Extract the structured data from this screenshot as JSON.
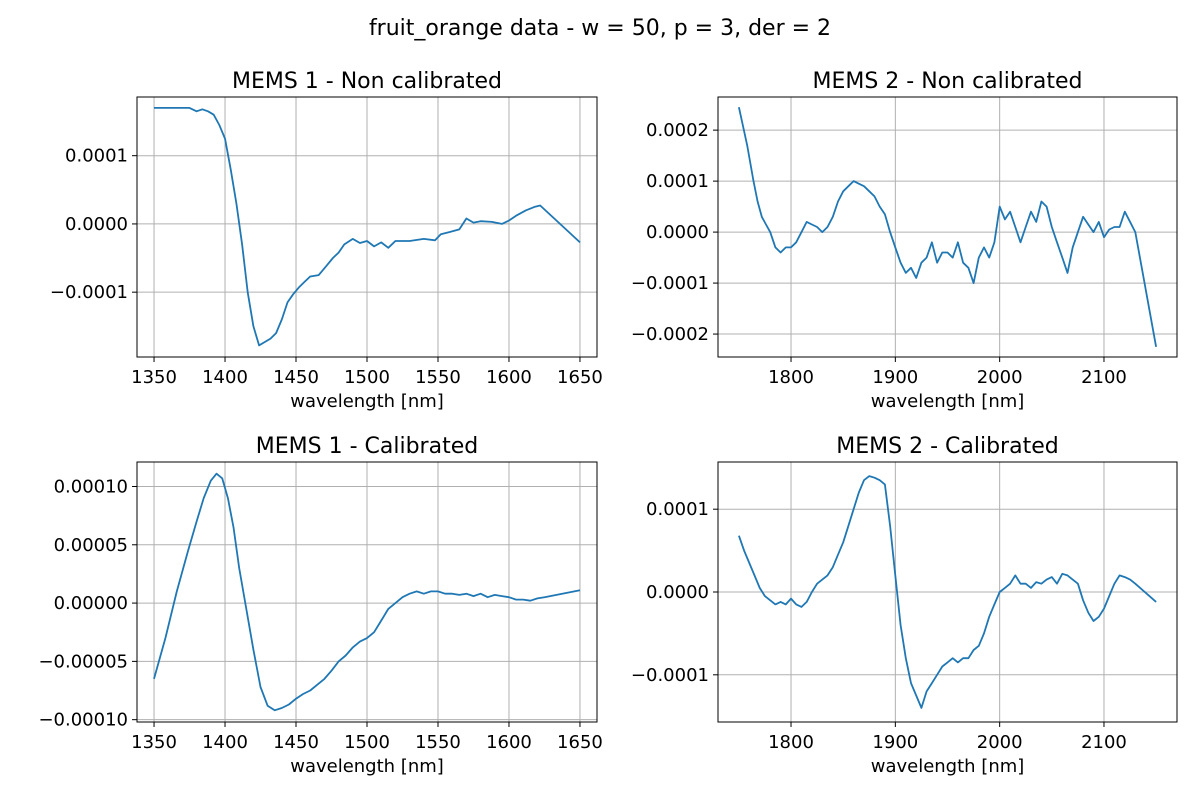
{
  "suptitle": "fruit_orange data - w = 50, p = 3, der = 2",
  "colors": {
    "series": "#1f77b4",
    "grid": "#b0b0b0"
  },
  "chart_data": [
    {
      "type": "line",
      "title": "MEMS 1 - Non calibrated",
      "xlabel": "wavelength [nm]",
      "ylabel": "",
      "grid": true,
      "xlim": [
        1338,
        1662
      ],
      "ylim": [
        -0.000195,
        0.000186
      ],
      "xticks": [
        1350,
        1400,
        1450,
        1500,
        1550,
        1600,
        1650
      ],
      "xtick_labels": [
        "1350",
        "1400",
        "1450",
        "1500",
        "1550",
        "1600",
        "1650"
      ],
      "yticks": [
        -0.0001,
        0.0,
        0.0001
      ],
      "ytick_labels": [
        "−0.0001",
        "0.0000",
        "0.0001"
      ],
      "series": [
        {
          "x": [
            1350,
            1362,
            1375,
            1380,
            1384,
            1388,
            1392,
            1396,
            1400,
            1404,
            1408,
            1412,
            1416,
            1420,
            1424,
            1428,
            1432,
            1436,
            1440,
            1444,
            1448,
            1452,
            1456,
            1460,
            1466,
            1472,
            1476,
            1480,
            1484,
            1490,
            1495,
            1500,
            1505,
            1510,
            1515,
            1520,
            1525,
            1530,
            1540,
            1548,
            1552,
            1558,
            1565,
            1570,
            1575,
            1580,
            1588,
            1595,
            1600,
            1605,
            1612,
            1618,
            1622,
            1650
          ],
          "y": [
            0.00017,
            0.00017,
            0.00017,
            0.000165,
            0.000168,
            0.000165,
            0.00016,
            0.000145,
            0.000125,
            8e-05,
            3e-05,
            -3e-05,
            -0.0001,
            -0.00015,
            -0.000178,
            -0.000173,
            -0.000168,
            -0.00016,
            -0.00014,
            -0.000115,
            -0.000103,
            -9.3e-05,
            -8.5e-05,
            -7.7e-05,
            -7.5e-05,
            -6e-05,
            -5e-05,
            -4.2e-05,
            -3e-05,
            -2.2e-05,
            -2.8e-05,
            -2.5e-05,
            -3.3e-05,
            -2.7e-05,
            -3.5e-05,
            -2.5e-05,
            -2.5e-05,
            -2.5e-05,
            -2.2e-05,
            -2.4e-05,
            -1.5e-05,
            -1.2e-05,
            -8e-06,
            8e-06,
            2e-06,
            4e-06,
            3e-06,
            0.0,
            5e-06,
            1.2e-05,
            2e-05,
            2.5e-05,
            2.7e-05,
            -2.7e-05
          ]
        }
      ]
    },
    {
      "type": "line",
      "title": "MEMS 2 - Non calibrated",
      "xlabel": "wavelength [nm]",
      "ylabel": "",
      "grid": true,
      "xlim": [
        1730,
        2170
      ],
      "ylim": [
        -0.000245,
        0.000265
      ],
      "xticks": [
        1800,
        1900,
        2000,
        2100
      ],
      "xtick_labels": [
        "1800",
        "1900",
        "2000",
        "2100"
      ],
      "yticks": [
        -0.0002,
        -0.0001,
        0.0,
        0.0001,
        0.0002
      ],
      "ytick_labels": [
        "−0.0002",
        "−0.0001",
        "0.0000",
        "0.0001",
        "0.0002"
      ],
      "series": [
        {
          "x": [
            1750,
            1758,
            1764,
            1768,
            1772,
            1776,
            1780,
            1785,
            1790,
            1795,
            1800,
            1805,
            1810,
            1815,
            1820,
            1825,
            1830,
            1835,
            1840,
            1845,
            1850,
            1855,
            1860,
            1865,
            1870,
            1875,
            1880,
            1885,
            1890,
            1895,
            1900,
            1905,
            1910,
            1915,
            1920,
            1925,
            1930,
            1935,
            1940,
            1945,
            1950,
            1955,
            1960,
            1965,
            1970,
            1975,
            1980,
            1985,
            1990,
            1995,
            2000,
            2005,
            2010,
            2015,
            2020,
            2025,
            2030,
            2035,
            2040,
            2045,
            2050,
            2055,
            2060,
            2065,
            2070,
            2075,
            2080,
            2085,
            2090,
            2095,
            2100,
            2105,
            2110,
            2115,
            2120,
            2125,
            2130,
            2150
          ],
          "y": [
            0.000245,
            0.00017,
            0.0001,
            6e-05,
            3e-05,
            1.5e-05,
            0.0,
            -3e-05,
            -4e-05,
            -3e-05,
            -3e-05,
            -2e-05,
            0.0,
            2e-05,
            1.5e-05,
            1e-05,
            0.0,
            1e-05,
            3e-05,
            6e-05,
            8e-05,
            9e-05,
            0.0001,
            9.5e-05,
            9e-05,
            8e-05,
            7e-05,
            5e-05,
            3.5e-05,
            0.0,
            -3e-05,
            -6e-05,
            -8e-05,
            -7e-05,
            -9e-05,
            -6e-05,
            -5e-05,
            -2e-05,
            -6e-05,
            -4e-05,
            -4e-05,
            -5e-05,
            -2e-05,
            -6e-05,
            -7e-05,
            -0.0001,
            -5e-05,
            -3e-05,
            -5e-05,
            -2e-05,
            5e-05,
            2.5e-05,
            4e-05,
            1e-05,
            -2e-05,
            1e-05,
            4e-05,
            2e-05,
            6e-05,
            5e-05,
            1e-05,
            -2e-05,
            -5e-05,
            -8e-05,
            -3e-05,
            0.0,
            3e-05,
            1.5e-05,
            0.0,
            2e-05,
            -1e-05,
            5e-06,
            1e-05,
            1e-05,
            4e-05,
            2e-05,
            0.0,
            -0.000225
          ]
        }
      ]
    },
    {
      "type": "line",
      "title": "MEMS 1 - Calibrated",
      "xlabel": "wavelength [nm]",
      "ylabel": "",
      "grid": true,
      "xlim": [
        1338,
        1662
      ],
      "ylim": [
        -0.000102,
        0.000121
      ],
      "xticks": [
        1350,
        1400,
        1450,
        1500,
        1550,
        1600,
        1650
      ],
      "xtick_labels": [
        "1350",
        "1400",
        "1450",
        "1500",
        "1550",
        "1600",
        "1650"
      ],
      "yticks": [
        -0.0001,
        -5e-05,
        0.0,
        5e-05,
        0.0001
      ],
      "ytick_labels": [
        "−0.00010",
        "−0.00005",
        "0.00000",
        "0.00005",
        "0.00010"
      ],
      "series": [
        {
          "x": [
            1350,
            1358,
            1366,
            1374,
            1380,
            1385,
            1390,
            1394,
            1398,
            1402,
            1406,
            1410,
            1415,
            1420,
            1425,
            1430,
            1435,
            1440,
            1445,
            1450,
            1455,
            1460,
            1465,
            1470,
            1475,
            1480,
            1485,
            1490,
            1495,
            1500,
            1505,
            1510,
            1515,
            1520,
            1525,
            1530,
            1535,
            1540,
            1545,
            1550,
            1555,
            1560,
            1565,
            1570,
            1575,
            1580,
            1585,
            1590,
            1595,
            1600,
            1605,
            1610,
            1615,
            1620,
            1625,
            1650
          ],
          "y": [
            -6.5e-05,
            -3e-05,
            1e-05,
            4.5e-05,
            7e-05,
            9e-05,
            0.000105,
            0.000111,
            0.000107,
            9e-05,
            6.5e-05,
            3e-05,
            -5e-06,
            -4e-05,
            -7.2e-05,
            -8.8e-05,
            -9.2e-05,
            -9e-05,
            -8.7e-05,
            -8.2e-05,
            -7.8e-05,
            -7.5e-05,
            -7e-05,
            -6.5e-05,
            -5.8e-05,
            -5e-05,
            -4.5e-05,
            -3.8e-05,
            -3.3e-05,
            -3e-05,
            -2.5e-05,
            -1.5e-05,
            -5e-06,
            0.0,
            5e-06,
            8e-06,
            1e-05,
            8e-06,
            1e-05,
            1e-05,
            8e-06,
            8e-06,
            7e-06,
            8e-06,
            6e-06,
            8e-06,
            5e-06,
            7e-06,
            6e-06,
            5e-06,
            3e-06,
            3e-06,
            2e-06,
            4e-06,
            5e-06,
            1.1e-05
          ]
        }
      ]
    },
    {
      "type": "line",
      "title": "MEMS 2 - Calibrated",
      "xlabel": "wavelength [nm]",
      "ylabel": "",
      "grid": true,
      "xlim": [
        1730,
        2170
      ],
      "ylim": [
        -0.000157,
        0.000157
      ],
      "xticks": [
        1800,
        1900,
        2000,
        2100
      ],
      "xtick_labels": [
        "1800",
        "1900",
        "2000",
        "2100"
      ],
      "yticks": [
        -0.0001,
        0.0,
        0.0001
      ],
      "ytick_labels": [
        "−0.0001",
        "0.0000",
        "0.0001"
      ],
      "series": [
        {
          "x": [
            1750,
            1755,
            1760,
            1765,
            1770,
            1775,
            1780,
            1785,
            1790,
            1795,
            1800,
            1805,
            1810,
            1815,
            1820,
            1825,
            1830,
            1835,
            1840,
            1845,
            1850,
            1855,
            1860,
            1865,
            1870,
            1875,
            1880,
            1885,
            1890,
            1895,
            1900,
            1905,
            1910,
            1915,
            1920,
            1925,
            1930,
            1935,
            1940,
            1945,
            1950,
            1955,
            1960,
            1965,
            1970,
            1975,
            1980,
            1985,
            1990,
            1995,
            2000,
            2005,
            2010,
            2015,
            2020,
            2025,
            2030,
            2035,
            2040,
            2045,
            2050,
            2055,
            2060,
            2065,
            2070,
            2075,
            2080,
            2085,
            2090,
            2095,
            2100,
            2105,
            2110,
            2115,
            2120,
            2125,
            2130,
            2150
          ],
          "y": [
            6.8e-05,
            5e-05,
            3.5e-05,
            2e-05,
            5e-06,
            -5e-06,
            -1e-05,
            -1.5e-05,
            -1.2e-05,
            -1.5e-05,
            -8e-06,
            -1.5e-05,
            -1.8e-05,
            -1.2e-05,
            0.0,
            1e-05,
            1.5e-05,
            2e-05,
            3e-05,
            4.5e-05,
            6e-05,
            8e-05,
            0.0001,
            0.00012,
            0.000135,
            0.00014,
            0.000138,
            0.000135,
            0.00013,
            8e-05,
            2e-05,
            -4e-05,
            -8e-05,
            -0.00011,
            -0.000125,
            -0.00014,
            -0.00012,
            -0.00011,
            -0.0001,
            -9e-05,
            -8.5e-05,
            -8e-05,
            -8.5e-05,
            -8e-05,
            -8e-05,
            -7e-05,
            -6.5e-05,
            -5e-05,
            -3e-05,
            -1.5e-05,
            0.0,
            5e-06,
            1e-05,
            2e-05,
            1e-05,
            1e-05,
            5e-06,
            1.2e-05,
            1e-05,
            1.5e-05,
            1.8e-05,
            1e-05,
            2.2e-05,
            2e-05,
            1.5e-05,
            1e-05,
            -1e-05,
            -2.5e-05,
            -3.5e-05,
            -3e-05,
            -2e-05,
            -5e-06,
            1e-05,
            2e-05,
            1.8e-05,
            1.5e-05,
            1e-05,
            -1.2e-05
          ]
        }
      ]
    }
  ]
}
